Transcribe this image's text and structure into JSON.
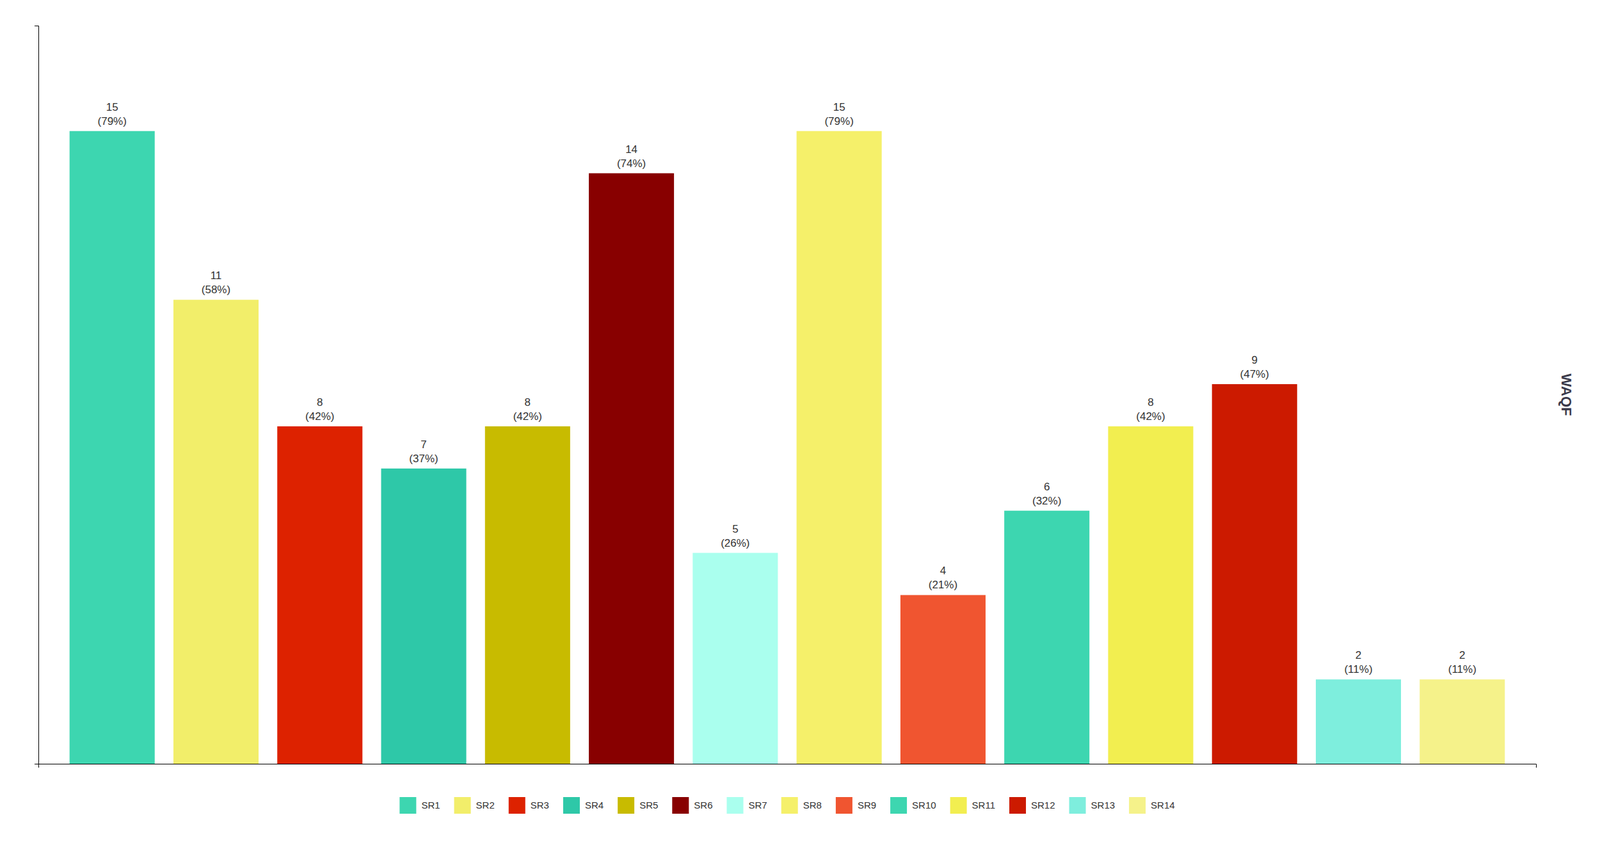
{
  "chart_data": {
    "type": "bar",
    "categories": [
      "SR1",
      "SR2",
      "SR3",
      "SR4",
      "SR5",
      "SR6",
      "SR7",
      "SR8",
      "SR9",
      "SR10",
      "SR11",
      "SR12",
      "SR13",
      "SR14"
    ],
    "values": [
      15,
      11,
      8,
      7,
      8,
      14,
      5,
      15,
      4,
      6,
      8,
      9,
      2,
      2
    ],
    "value_labels": [
      "15\n(79%)",
      "11\n(58%)",
      "8\n(42%)",
      "7\n(37%)",
      "8\n(42%)",
      "14\n(74%)",
      "5\n(26%)",
      "15\n(79%)",
      "4\n(21%)",
      "6\n(32%)",
      "8\n(42%)",
      "9\n(47%)",
      "2\n(11%)",
      "2\n(11%)"
    ],
    "colors": [
      "#3DD6B0",
      "#F2EE6A",
      "#DD2200",
      "#2EC8A8",
      "#C8BB00",
      "#880000",
      "#AAFFEE",
      "#F5F06A",
      "#F05530",
      "#3DD6B0",
      "#F2EE50",
      "#CC1A00",
      "#7EEEDD",
      "#F5F28A"
    ],
    "ylabel": "WAQF",
    "ylim": [
      0,
      17.5
    ],
    "data_labels": true,
    "tick_labels": false,
    "legend": "bottom"
  }
}
